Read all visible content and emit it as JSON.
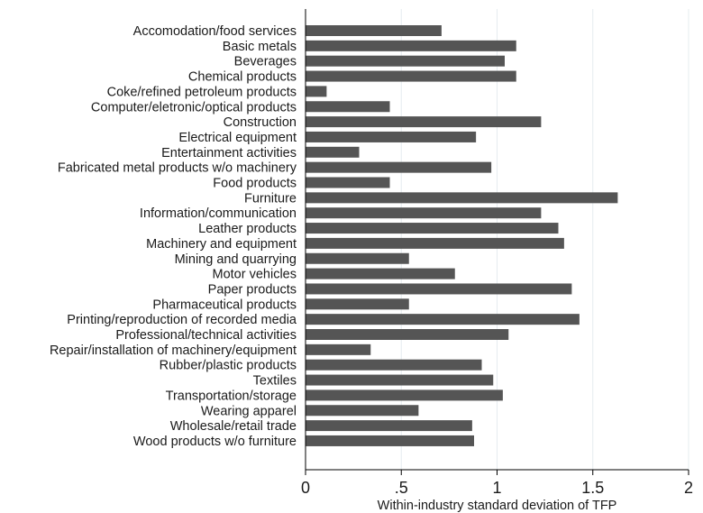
{
  "chart_data": {
    "type": "bar",
    "orientation": "horizontal",
    "categories": [
      "Accomodation/food services",
      "Basic metals",
      "Beverages",
      "Chemical products",
      "Coke/refined petroleum products",
      "Computer/eletronic/optical products",
      "Construction",
      "Electrical equipment",
      "Entertainment activities",
      "Fabricated metal products w/o machinery",
      "Food products",
      "Furniture",
      "Information/communication",
      "Leather products",
      "Machinery and equipment",
      "Mining and quarrying",
      "Motor vehicles",
      "Paper products",
      "Pharmaceutical products",
      "Printing/reproduction of recorded media",
      "Professional/technical activities",
      "Repair/installation of machinery/equipment",
      "Rubber/plastic products",
      "Textiles",
      "Transportation/storage",
      "Wearing apparel",
      "Wholesale/retail trade",
      "Wood products w/o furniture"
    ],
    "values": [
      0.71,
      1.1,
      1.04,
      1.1,
      0.11,
      0.44,
      1.23,
      0.89,
      0.28,
      0.97,
      0.44,
      1.63,
      1.23,
      1.32,
      1.35,
      0.54,
      0.78,
      1.39,
      0.54,
      1.43,
      1.06,
      0.34,
      0.92,
      0.98,
      1.03,
      0.59,
      0.87,
      0.88
    ],
    "title": "",
    "xlabel": "Within-industry standard deviation of TFP",
    "ylabel": "",
    "xlim": [
      0,
      2
    ],
    "ticks": [
      0,
      0.5,
      1,
      1.5,
      2
    ],
    "tick_labels": [
      "0",
      ".5",
      "1",
      "1.5",
      "2"
    ],
    "grid": true,
    "colors": {
      "bar": "#555555",
      "grid": "#e6ecef",
      "axis": "#000000"
    }
  }
}
